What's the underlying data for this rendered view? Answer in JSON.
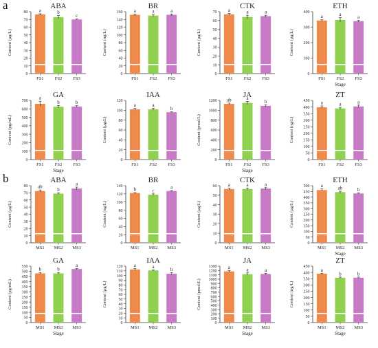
{
  "panel_labels": [
    "a",
    "b"
  ],
  "colors": {
    "stage1": "#F08A4B",
    "stage2": "#8FD14F",
    "stage3": "#C77BC7"
  },
  "chart_data": [
    {
      "panel": "a",
      "type": "bar",
      "title": "ABA",
      "categories": [
        "FS1",
        "FS2",
        "FS3"
      ],
      "values": [
        76.5,
        73.0,
        70.0
      ],
      "errors": [
        0.8,
        2.0,
        0.5
      ],
      "letters": [
        "a",
        "b",
        "c"
      ],
      "ylabel": "Content (μg/L)",
      "xlabel": "",
      "ylim": [
        0,
        80
      ],
      "yticks": [
        0,
        10,
        20,
        30,
        40,
        50,
        60,
        70,
        80
      ]
    },
    {
      "panel": "a",
      "type": "bar",
      "title": "BR",
      "categories": [
        "FS1",
        "FS2",
        "FS3"
      ],
      "values": [
        152,
        150,
        152
      ],
      "errors": [
        2,
        3,
        2
      ],
      "letters": [
        "a",
        "a",
        "a"
      ],
      "ylabel": "Content (ng/L)",
      "xlabel": "",
      "ylim": [
        0,
        160
      ],
      "yticks": [
        0,
        20,
        40,
        60,
        80,
        100,
        120,
        140,
        160
      ]
    },
    {
      "panel": "a",
      "type": "bar",
      "title": "CTK",
      "categories": [
        "FS1",
        "FS2",
        "FS3"
      ],
      "values": [
        67,
        64,
        65
      ],
      "errors": [
        1,
        2,
        1
      ],
      "letters": [
        "a",
        "a",
        "a"
      ],
      "ylabel": "Content (μg/L)",
      "xlabel": "",
      "ylim": [
        0,
        70
      ],
      "yticks": [
        0,
        10,
        20,
        30,
        40,
        50,
        60,
        70
      ]
    },
    {
      "panel": "a",
      "type": "bar",
      "title": "ETH",
      "categories": [
        "FS1",
        "FS2",
        "FS3"
      ],
      "values": [
        343,
        347,
        339
      ],
      "errors": [
        5,
        15,
        5
      ],
      "letters": [
        "a",
        "a",
        "a"
      ],
      "ylabel": "Content (μg/L)",
      "xlabel": "Stage",
      "ylim": [
        0,
        400
      ],
      "yticks": [
        0,
        100,
        200,
        300,
        400
      ]
    },
    {
      "panel": "a",
      "type": "bar",
      "title": "GA",
      "categories": [
        "FS1",
        "FS2",
        "FS3"
      ],
      "values": [
        660,
        625,
        628
      ],
      "errors": [
        30,
        15,
        10
      ],
      "letters": [
        "a",
        "b",
        "b"
      ],
      "ylabel": "Content (pg/mL)",
      "xlabel": "Stage",
      "ylim": [
        0,
        700
      ],
      "yticks": [
        0,
        100,
        200,
        300,
        400,
        500,
        600,
        700
      ]
    },
    {
      "panel": "a",
      "type": "bar",
      "title": "IAA",
      "categories": [
        "FS1",
        "FS2",
        "FS3"
      ],
      "values": [
        102,
        102,
        96
      ],
      "errors": [
        2,
        2,
        1
      ],
      "letters": [
        "a",
        "a",
        "b"
      ],
      "ylabel": "Content (μg/L)",
      "xlabel": "",
      "ylim": [
        0,
        120
      ],
      "yticks": [
        0,
        20,
        40,
        60,
        80,
        100,
        120
      ]
    },
    {
      "panel": "a",
      "type": "bar",
      "title": "JA",
      "categories": [
        "FS1",
        "FS2",
        "FS3"
      ],
      "values": [
        1130,
        1150,
        1090
      ],
      "errors": [
        15,
        30,
        20
      ],
      "letters": [
        "ab",
        "a",
        "b"
      ],
      "ylabel": "Content (pmol/L)",
      "xlabel": "Stage",
      "ylim": [
        0,
        1200
      ],
      "yticks": [
        0,
        200,
        400,
        600,
        800,
        1000,
        1200
      ]
    },
    {
      "panel": "a",
      "type": "bar",
      "title": "ZT",
      "categories": [
        "FS1",
        "FS2",
        "FS3"
      ],
      "values": [
        398,
        389,
        404
      ],
      "errors": [
        10,
        8,
        10
      ],
      "letters": [
        "a",
        "a",
        "a"
      ],
      "ylabel": "Content (ng/L)",
      "xlabel": "",
      "ylim": [
        0,
        450
      ],
      "yticks": [
        0,
        50,
        100,
        150,
        200,
        250,
        300,
        350,
        400,
        450
      ]
    },
    {
      "panel": "b",
      "type": "bar",
      "title": "ABA",
      "categories": [
        "MS1",
        "MS2",
        "MS3"
      ],
      "values": [
        72.5,
        69.0,
        76.0
      ],
      "errors": [
        1.5,
        1.0,
        2.0
      ],
      "letters": [
        "ab",
        "b",
        "a"
      ],
      "ylabel": "Content (μg/L)",
      "xlabel": "",
      "ylim": [
        0,
        80
      ],
      "yticks": [
        0,
        10,
        20,
        30,
        40,
        50,
        60,
        70,
        80
      ]
    },
    {
      "panel": "b",
      "type": "bar",
      "title": "BR",
      "categories": [
        "MS1",
        "MS2",
        "MS3"
      ],
      "values": [
        122,
        118,
        127
      ],
      "errors": [
        1,
        2,
        1
      ],
      "letters": [
        "b",
        "c",
        "a"
      ],
      "ylabel": "Content (ng/L)",
      "xlabel": "",
      "ylim": [
        0,
        140
      ],
      "yticks": [
        0,
        20,
        40,
        60,
        80,
        100,
        120,
        140
      ]
    },
    {
      "panel": "b",
      "type": "bar",
      "title": "CTK",
      "categories": [
        "MS1",
        "MS2",
        "MS3"
      ],
      "values": [
        56.5,
        56.5,
        57
      ],
      "errors": [
        1,
        1,
        1
      ],
      "letters": [
        "a",
        "a",
        "a"
      ],
      "ylabel": "Content (μg/L)",
      "xlabel": "",
      "ylim": [
        0,
        60
      ],
      "yticks": [
        0,
        10,
        20,
        30,
        40,
        50,
        60
      ]
    },
    {
      "panel": "b",
      "type": "bar",
      "title": "ETH",
      "categories": [
        "MS1",
        "MS2",
        "MS3"
      ],
      "values": [
        462,
        444,
        432
      ],
      "errors": [
        10,
        8,
        5
      ],
      "letters": [
        "a",
        "ab",
        "b"
      ],
      "ylabel": "Content (μg/L)",
      "xlabel": "Stage",
      "ylim": [
        0,
        500
      ],
      "yticks": [
        0,
        50,
        100,
        150,
        200,
        250,
        300,
        350,
        400,
        450,
        500
      ]
    },
    {
      "panel": "b",
      "type": "bar",
      "title": "GA",
      "categories": [
        "MS1",
        "MS2",
        "MS3"
      ],
      "values": [
        480,
        480,
        522
      ],
      "errors": [
        8,
        8,
        5
      ],
      "letters": [
        "b",
        "b",
        "a"
      ],
      "ylabel": "Content (pg/mL)",
      "xlabel": "Stage",
      "ylim": [
        0,
        550
      ],
      "yticks": [
        0,
        50,
        100,
        150,
        200,
        250,
        300,
        350,
        400,
        450,
        500,
        550
      ]
    },
    {
      "panel": "b",
      "type": "bar",
      "title": "IAA",
      "categories": [
        "MS1",
        "MS2",
        "MS3"
      ],
      "values": [
        113,
        111,
        104
      ],
      "errors": [
        2,
        1,
        2
      ],
      "letters": [
        "a",
        "a",
        "b"
      ],
      "ylabel": "Content (μg/L)",
      "xlabel": "",
      "ylim": [
        0,
        120
      ],
      "yticks": [
        0,
        10,
        20,
        30,
        40,
        50,
        60,
        70,
        80,
        90,
        100,
        110,
        120
      ]
    },
    {
      "panel": "b",
      "type": "bar",
      "title": "JA",
      "categories": [
        "MS1",
        "MS2",
        "MS3"
      ],
      "values": [
        1180,
        1115,
        1120
      ],
      "errors": [
        20,
        30,
        15
      ],
      "letters": [
        "a",
        "a",
        "a"
      ],
      "ylabel": "Content (pmol/L)",
      "xlabel": "Stage",
      "ylim": [
        0,
        1300
      ],
      "yticks": [
        0,
        100,
        200,
        300,
        400,
        500,
        600,
        700,
        800,
        900,
        1000,
        1100,
        1200,
        1300
      ]
    },
    {
      "panel": "b",
      "type": "bar",
      "title": "ZT",
      "categories": [
        "MS1",
        "MS2",
        "MS3"
      ],
      "values": [
        390,
        358,
        358
      ],
      "errors": [
        3,
        5,
        5
      ],
      "letters": [
        "a",
        "b",
        "b"
      ],
      "ylabel": "Content (ng/L)",
      "xlabel": "Stage",
      "ylim": [
        0,
        450
      ],
      "yticks": [
        0,
        50,
        100,
        150,
        200,
        250,
        300,
        350,
        400,
        450
      ]
    }
  ]
}
